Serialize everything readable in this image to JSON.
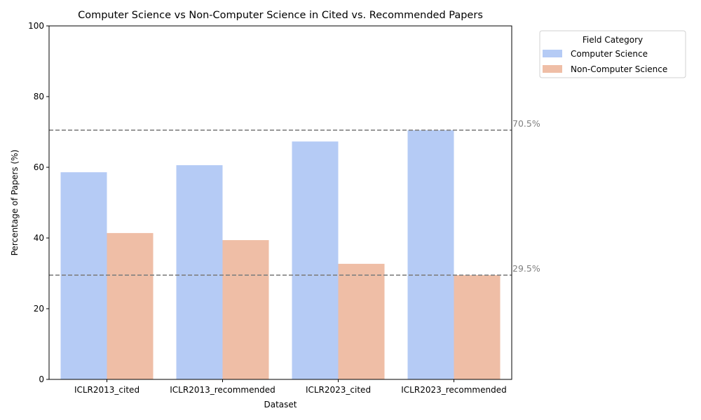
{
  "chart_data": {
    "type": "bar",
    "title": "Computer Science vs Non-Computer Science in Cited vs. Recommended Papers",
    "xlabel": "Dataset",
    "ylabel": "Percentage of Papers (%)",
    "ylim": [
      0,
      100
    ],
    "yticks": [
      0,
      20,
      40,
      60,
      80,
      100
    ],
    "categories": [
      "ICLR2013_cited",
      "ICLR2013_recommended",
      "ICLR2023_cited",
      "ICLR2023_recommended"
    ],
    "series": [
      {
        "name": "Computer Science",
        "color": "#b5cbf5",
        "values": [
          58.6,
          60.6,
          67.3,
          70.5
        ]
      },
      {
        "name": "Non-Computer Science",
        "color": "#efbea6",
        "values": [
          41.4,
          39.4,
          32.7,
          29.5
        ]
      }
    ],
    "reference_lines": [
      {
        "value": 70.5,
        "label": "70.5%",
        "color": "#808080"
      },
      {
        "value": 29.5,
        "label": "29.5%",
        "color": "#808080"
      }
    ],
    "legend": {
      "title": "Field Category",
      "placement": "outside-top-right"
    },
    "grid": false
  }
}
